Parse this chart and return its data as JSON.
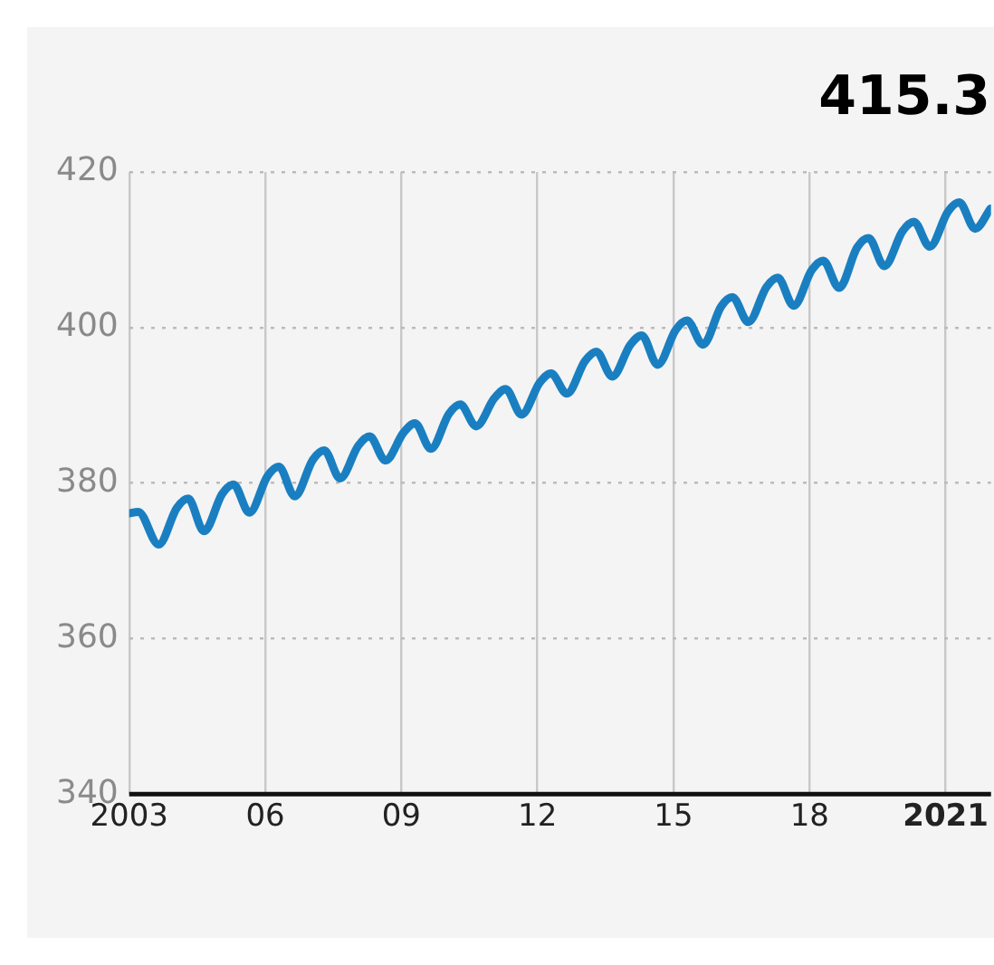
{
  "chart_data": {
    "type": "line",
    "annotations": [
      {
        "text": "415.3",
        "x": 2021.99,
        "y": 415.3
      }
    ],
    "series": [
      {
        "color": "#1a7fc1",
        "x": [
          2003.0,
          2003.2,
          2003.65,
          2004.05,
          2004.3,
          2004.65,
          2005.05,
          2005.3,
          2005.65,
          2006.05,
          2006.3,
          2006.65,
          2007.05,
          2007.3,
          2007.65,
          2008.05,
          2008.3,
          2008.65,
          2009.05,
          2009.3,
          2009.65,
          2010.05,
          2010.3,
          2010.65,
          2011.05,
          2011.3,
          2011.65,
          2012.05,
          2012.3,
          2012.65,
          2013.05,
          2013.3,
          2013.65,
          2014.05,
          2014.3,
          2014.65,
          2015.05,
          2015.3,
          2015.65,
          2016.05,
          2016.3,
          2016.65,
          2017.05,
          2017.3,
          2017.65,
          2018.05,
          2018.3,
          2018.65,
          2019.05,
          2019.3,
          2019.65,
          2020.05,
          2020.3,
          2020.65,
          2021.05,
          2021.3,
          2021.65,
          2021.99
        ],
        "values": [
          376.1,
          376.3,
          372.1,
          376.8,
          378.0,
          373.8,
          378.6,
          379.8,
          376.2,
          380.9,
          382.1,
          378.3,
          383.0,
          384.2,
          380.6,
          384.8,
          386.0,
          382.9,
          386.5,
          387.7,
          384.4,
          388.9,
          390.1,
          387.3,
          390.9,
          392.1,
          388.8,
          392.9,
          394.1,
          391.5,
          395.7,
          396.9,
          393.7,
          397.8,
          399.0,
          395.2,
          399.7,
          400.9,
          397.8,
          402.7,
          403.9,
          400.7,
          405.2,
          406.4,
          402.8,
          407.4,
          408.6,
          405.1,
          410.3,
          411.5,
          407.9,
          412.4,
          413.6,
          410.4,
          414.9,
          416.1,
          412.7,
          415.3
        ]
      }
    ],
    "xlim": [
      2003,
      2022
    ],
    "xticks": [
      2003,
      {
        "value": 2006,
        "label": "06"
      },
      {
        "value": 2009,
        "label": "09"
      },
      {
        "value": 2012,
        "label": "12"
      },
      {
        "value": 2015,
        "label": "15"
      },
      {
        "value": 2018,
        "label": "18"
      },
      2021
    ],
    "ylim": [
      340,
      420
    ],
    "yticks": [
      340,
      360,
      380,
      400,
      420
    ],
    "grid": true,
    "marker": "none",
    "line_style": "solid"
  }
}
